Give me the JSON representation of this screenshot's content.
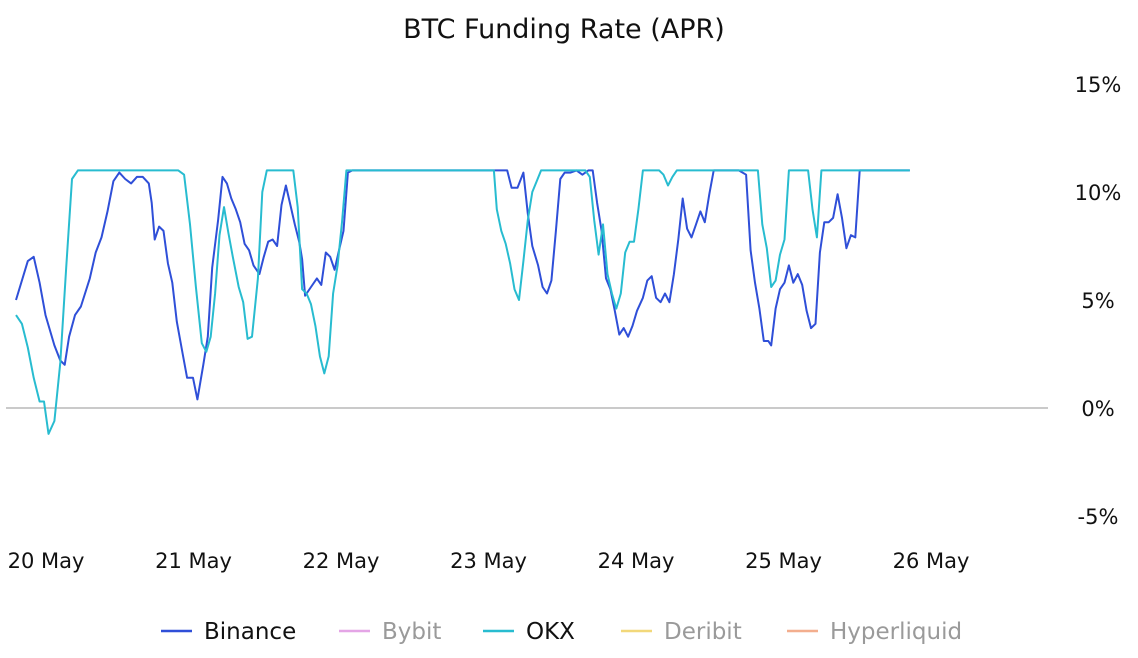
{
  "chart_data": {
    "type": "line",
    "title": "BTC Funding Rate (APR)",
    "xlabel": "",
    "ylabel": "",
    "x_tick_labels": [
      "20 May",
      "21 May",
      "22 May",
      "23 May",
      "24 May",
      "25 May",
      "26 May"
    ],
    "x_range_days": [
      0,
      7.0
    ],
    "y_ticks": [
      15,
      10,
      5,
      0,
      -5
    ],
    "y_tick_labels": [
      "15%",
      "10%",
      "5%",
      "0%",
      "-5%"
    ],
    "ylim": [
      -5,
      15
    ],
    "y_axis_side": "right",
    "grid": false,
    "zero_line": true,
    "legend_position": "bottom-center",
    "series": [
      {
        "name": "Binance",
        "color": "#2f4fd8",
        "visible": true,
        "points": [
          [
            0.0,
            5.0
          ],
          [
            0.08,
            6.8
          ],
          [
            0.12,
            7.0
          ],
          [
            0.16,
            5.8
          ],
          [
            0.2,
            4.3
          ],
          [
            0.26,
            2.9
          ],
          [
            0.3,
            2.2
          ],
          [
            0.33,
            2.0
          ],
          [
            0.36,
            3.3
          ],
          [
            0.4,
            4.3
          ],
          [
            0.44,
            4.7
          ],
          [
            0.5,
            6.0
          ],
          [
            0.54,
            7.2
          ],
          [
            0.58,
            7.9
          ],
          [
            0.62,
            9.1
          ],
          [
            0.66,
            10.5
          ],
          [
            0.7,
            10.9
          ],
          [
            0.74,
            10.6
          ],
          [
            0.78,
            10.4
          ],
          [
            0.82,
            10.7
          ],
          [
            0.86,
            10.7
          ],
          [
            0.9,
            10.4
          ],
          [
            0.92,
            9.5
          ],
          [
            0.94,
            7.8
          ],
          [
            0.97,
            8.4
          ],
          [
            1.0,
            8.2
          ],
          [
            1.03,
            6.7
          ],
          [
            1.06,
            5.8
          ],
          [
            1.09,
            4.0
          ],
          [
            1.13,
            2.5
          ],
          [
            1.16,
            1.4
          ],
          [
            1.2,
            1.4
          ],
          [
            1.23,
            0.4
          ],
          [
            1.27,
            2.0
          ],
          [
            1.3,
            3.3
          ],
          [
            1.33,
            6.5
          ],
          [
            1.37,
            8.7
          ],
          [
            1.4,
            10.7
          ],
          [
            1.43,
            10.4
          ],
          [
            1.46,
            9.7
          ],
          [
            1.49,
            9.2
          ],
          [
            1.52,
            8.6
          ],
          [
            1.55,
            7.6
          ],
          [
            1.58,
            7.3
          ],
          [
            1.61,
            6.6
          ],
          [
            1.65,
            6.2
          ],
          [
            1.68,
            7.0
          ],
          [
            1.71,
            7.7
          ],
          [
            1.74,
            7.8
          ],
          [
            1.77,
            7.5
          ],
          [
            1.8,
            9.4
          ],
          [
            1.83,
            10.3
          ],
          [
            1.86,
            9.4
          ],
          [
            1.89,
            8.5
          ],
          [
            1.92,
            7.7
          ],
          [
            1.94,
            6.9
          ],
          [
            1.96,
            5.2
          ],
          [
            2.0,
            5.6
          ],
          [
            2.04,
            6.0
          ],
          [
            2.07,
            5.7
          ],
          [
            2.1,
            7.2
          ],
          [
            2.13,
            7.0
          ],
          [
            2.16,
            6.4
          ],
          [
            2.19,
            7.3
          ],
          [
            2.22,
            8.2
          ],
          [
            2.25,
            10.9
          ],
          [
            2.28,
            11.0
          ],
          [
            2.4,
            11.0
          ],
          [
            2.6,
            11.0
          ],
          [
            2.8,
            11.0
          ],
          [
            3.0,
            11.0
          ],
          [
            3.2,
            11.0
          ],
          [
            3.33,
            11.0
          ],
          [
            3.36,
            10.2
          ],
          [
            3.4,
            10.2
          ],
          [
            3.44,
            10.9
          ],
          [
            3.47,
            9.0
          ],
          [
            3.5,
            7.5
          ],
          [
            3.54,
            6.6
          ],
          [
            3.57,
            5.6
          ],
          [
            3.6,
            5.3
          ],
          [
            3.63,
            5.9
          ],
          [
            3.66,
            8.2
          ],
          [
            3.69,
            10.6
          ],
          [
            3.72,
            10.9
          ],
          [
            3.76,
            10.9
          ],
          [
            3.8,
            11.0
          ],
          [
            3.84,
            10.8
          ],
          [
            3.88,
            11.0
          ],
          [
            3.91,
            11.0
          ],
          [
            3.94,
            9.5
          ],
          [
            3.97,
            8.2
          ],
          [
            4.0,
            6.0
          ],
          [
            4.03,
            5.5
          ],
          [
            4.06,
            4.5
          ],
          [
            4.09,
            3.4
          ],
          [
            4.12,
            3.7
          ],
          [
            4.15,
            3.3
          ],
          [
            4.18,
            3.8
          ],
          [
            4.21,
            4.5
          ],
          [
            4.25,
            5.1
          ],
          [
            4.28,
            5.9
          ],
          [
            4.31,
            6.1
          ],
          [
            4.34,
            5.1
          ],
          [
            4.37,
            4.9
          ],
          [
            4.4,
            5.3
          ],
          [
            4.43,
            4.9
          ],
          [
            4.46,
            6.2
          ],
          [
            4.49,
            7.8
          ],
          [
            4.52,
            9.7
          ],
          [
            4.55,
            8.3
          ],
          [
            4.58,
            7.9
          ],
          [
            4.61,
            8.5
          ],
          [
            4.64,
            9.1
          ],
          [
            4.67,
            8.6
          ],
          [
            4.7,
            9.9
          ],
          [
            4.73,
            11.0
          ],
          [
            4.8,
            11.0
          ],
          [
            4.9,
            11.0
          ],
          [
            4.95,
            10.8
          ],
          [
            4.98,
            7.3
          ],
          [
            5.01,
            5.8
          ],
          [
            5.04,
            4.6
          ],
          [
            5.07,
            3.1
          ],
          [
            5.1,
            3.1
          ],
          [
            5.12,
            2.9
          ],
          [
            5.15,
            4.6
          ],
          [
            5.18,
            5.5
          ],
          [
            5.21,
            5.8
          ],
          [
            5.24,
            6.6
          ],
          [
            5.27,
            5.8
          ],
          [
            5.3,
            6.2
          ],
          [
            5.33,
            5.7
          ],
          [
            5.36,
            4.5
          ],
          [
            5.39,
            3.7
          ],
          [
            5.42,
            3.9
          ],
          [
            5.45,
            7.2
          ],
          [
            5.48,
            8.6
          ],
          [
            5.51,
            8.6
          ],
          [
            5.54,
            8.8
          ],
          [
            5.57,
            9.9
          ],
          [
            5.6,
            8.8
          ],
          [
            5.63,
            7.4
          ],
          [
            5.66,
            8.0
          ],
          [
            5.69,
            7.9
          ],
          [
            5.72,
            11.0
          ],
          [
            5.8,
            11.0
          ],
          [
            5.9,
            11.0
          ],
          [
            6.0,
            11.0
          ],
          [
            6.06,
            11.0
          ]
        ]
      },
      {
        "name": "Bybit",
        "color": "#e4a5e6",
        "visible": false,
        "points": []
      },
      {
        "name": "OKX",
        "color": "#28bcd0",
        "visible": true,
        "points": [
          [
            0.0,
            4.3
          ],
          [
            0.04,
            3.9
          ],
          [
            0.08,
            2.8
          ],
          [
            0.12,
            1.4
          ],
          [
            0.16,
            0.3
          ],
          [
            0.19,
            0.3
          ],
          [
            0.22,
            -1.2
          ],
          [
            0.26,
            -0.6
          ],
          [
            0.3,
            2.1
          ],
          [
            0.34,
            6.5
          ],
          [
            0.38,
            10.6
          ],
          [
            0.42,
            11.0
          ],
          [
            0.6,
            11.0
          ],
          [
            0.8,
            11.0
          ],
          [
            1.0,
            11.0
          ],
          [
            1.1,
            11.0
          ],
          [
            1.14,
            10.8
          ],
          [
            1.18,
            8.5
          ],
          [
            1.22,
            5.6
          ],
          [
            1.26,
            3.0
          ],
          [
            1.29,
            2.6
          ],
          [
            1.32,
            3.3
          ],
          [
            1.35,
            5.3
          ],
          [
            1.38,
            8.0
          ],
          [
            1.41,
            9.3
          ],
          [
            1.44,
            8.1
          ],
          [
            1.47,
            7.0
          ],
          [
            1.51,
            5.6
          ],
          [
            1.54,
            4.9
          ],
          [
            1.57,
            3.2
          ],
          [
            1.6,
            3.3
          ],
          [
            1.64,
            6.0
          ],
          [
            1.67,
            10.0
          ],
          [
            1.7,
            11.0
          ],
          [
            1.8,
            11.0
          ],
          [
            1.88,
            11.0
          ],
          [
            1.91,
            9.3
          ],
          [
            1.94,
            5.5
          ],
          [
            1.97,
            5.3
          ],
          [
            2.0,
            4.8
          ],
          [
            2.03,
            3.8
          ],
          [
            2.06,
            2.4
          ],
          [
            2.09,
            1.6
          ],
          [
            2.12,
            2.4
          ],
          [
            2.15,
            5.3
          ],
          [
            2.18,
            6.6
          ],
          [
            2.21,
            8.6
          ],
          [
            2.24,
            11.0
          ],
          [
            2.4,
            11.0
          ],
          [
            2.6,
            11.0
          ],
          [
            2.8,
            11.0
          ],
          [
            3.0,
            11.0
          ],
          [
            3.2,
            11.0
          ],
          [
            3.24,
            11.0
          ],
          [
            3.26,
            9.2
          ],
          [
            3.29,
            8.2
          ],
          [
            3.32,
            7.6
          ],
          [
            3.35,
            6.7
          ],
          [
            3.38,
            5.5
          ],
          [
            3.41,
            5.0
          ],
          [
            3.44,
            6.8
          ],
          [
            3.47,
            8.7
          ],
          [
            3.5,
            10.0
          ],
          [
            3.53,
            10.5
          ],
          [
            3.56,
            11.0
          ],
          [
            3.7,
            11.0
          ],
          [
            3.8,
            11.0
          ],
          [
            3.86,
            11.0
          ],
          [
            3.89,
            10.7
          ],
          [
            3.92,
            8.7
          ],
          [
            3.95,
            7.1
          ],
          [
            3.98,
            8.5
          ],
          [
            4.01,
            6.2
          ],
          [
            4.04,
            5.3
          ],
          [
            4.07,
            4.6
          ],
          [
            4.1,
            5.3
          ],
          [
            4.13,
            7.2
          ],
          [
            4.16,
            7.7
          ],
          [
            4.19,
            7.7
          ],
          [
            4.22,
            9.2
          ],
          [
            4.25,
            11.0
          ],
          [
            4.3,
            11.0
          ],
          [
            4.36,
            11.0
          ],
          [
            4.39,
            10.8
          ],
          [
            4.42,
            10.3
          ],
          [
            4.45,
            10.7
          ],
          [
            4.48,
            11.0
          ],
          [
            4.6,
            11.0
          ],
          [
            4.8,
            11.0
          ],
          [
            5.0,
            11.0
          ],
          [
            5.03,
            11.0
          ],
          [
            5.06,
            8.5
          ],
          [
            5.09,
            7.4
          ],
          [
            5.12,
            5.6
          ],
          [
            5.15,
            5.9
          ],
          [
            5.18,
            7.1
          ],
          [
            5.21,
            7.8
          ],
          [
            5.24,
            11.0
          ],
          [
            5.3,
            11.0
          ],
          [
            5.37,
            11.0
          ],
          [
            5.4,
            9.2
          ],
          [
            5.43,
            7.9
          ],
          [
            5.46,
            11.0
          ],
          [
            5.6,
            11.0
          ],
          [
            5.8,
            11.0
          ],
          [
            6.0,
            11.0
          ],
          [
            6.06,
            11.0
          ]
        ]
      },
      {
        "name": "Deribit",
        "color": "#f2d87a",
        "visible": false,
        "points": []
      },
      {
        "name": "Hyperliquid",
        "color": "#f3ae8e",
        "visible": false,
        "points": []
      }
    ]
  }
}
